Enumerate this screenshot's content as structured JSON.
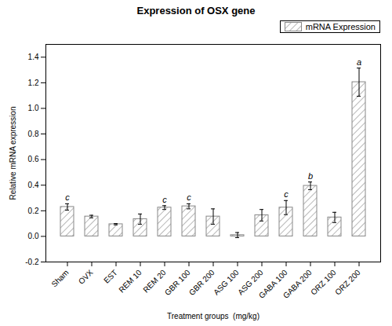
{
  "chart_data": {
    "type": "bar",
    "title": "Expression of OSX gene",
    "xlabel": "Treatment groups  (mg/kg)",
    "ylabel": "Relative mRNA expression",
    "categories": [
      "Sham",
      "OVX",
      "EST",
      "REM 10",
      "REM 20",
      "GBR 100",
      "GBR 200",
      "ASG 100",
      "ASG 200",
      "GABA 100",
      "GABA 200",
      "ORZ 100",
      "ORZ 200"
    ],
    "series": [
      {
        "name": "mRNA Expression",
        "color": "#888888",
        "values": [
          0.23,
          0.155,
          0.095,
          0.135,
          0.225,
          0.235,
          0.155,
          0.01,
          0.165,
          0.225,
          0.395,
          0.148,
          1.205
        ],
        "errors": [
          0.025,
          0.01,
          0.005,
          0.04,
          0.015,
          0.02,
          0.06,
          0.02,
          0.045,
          0.055,
          0.03,
          0.04,
          0.11
        ]
      }
    ],
    "annotations": [
      "c",
      null,
      null,
      null,
      "c",
      "c",
      null,
      null,
      null,
      "c",
      "b",
      null,
      "a"
    ],
    "ylim": [
      -0.2,
      1.5
    ],
    "yticks": [
      -0.2,
      {
        "value": 0,
        "label": "0.0"
      },
      0.2,
      0.4,
      0.6,
      0.8,
      {
        "value": 1,
        "label": "1.0"
      },
      1.2,
      1.4
    ],
    "grid": false,
    "legend": "upper right"
  }
}
